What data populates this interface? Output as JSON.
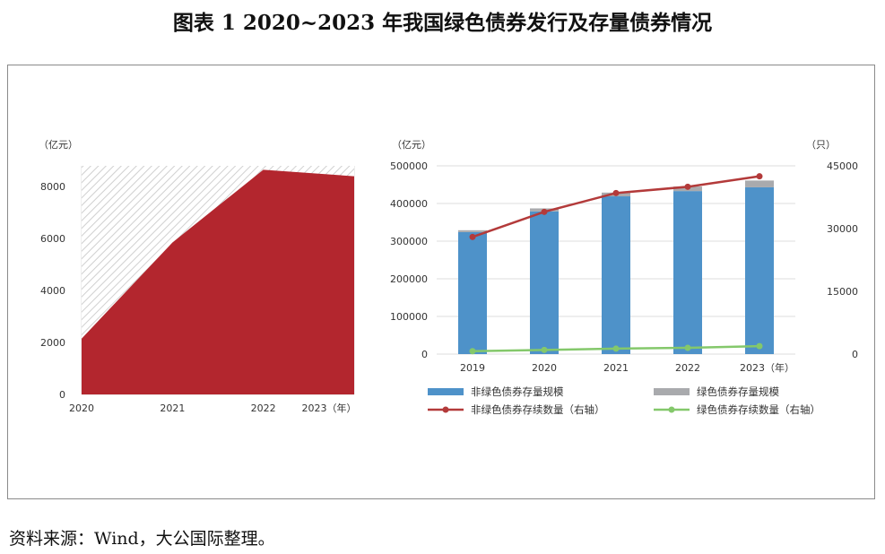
{
  "figure": {
    "title": "图表 1 2020~2023 年我国绿色债券发行及存量债券情况",
    "source": "资料来源：Wind，大公国际整理。"
  },
  "colors": {
    "area_fill": "#b3262e",
    "area_hatch": "#d0d0d0",
    "non_green_bar": "#4e92c9",
    "green_bar": "#a9aaad",
    "non_green_line": "#b33a3a",
    "green_line": "#84c86b",
    "grid": "#dcdcdc"
  },
  "chart_data": [
    {
      "type": "area",
      "title": "",
      "ylabel": "（亿元）",
      "xlabel": "",
      "ylim": [
        0,
        8800
      ],
      "yticks": [
        0,
        2000,
        4000,
        6000,
        8000
      ],
      "x": [
        "2020",
        "2021",
        "2022",
        "2023（年）"
      ],
      "series": [
        {
          "values": [
            2150,
            5850,
            8650,
            8400
          ]
        }
      ],
      "grid": true,
      "legend": "none"
    },
    {
      "type": "bar",
      "title": "",
      "ylabel": "（亿元）",
      "y2label": "（只）",
      "xlabel": "",
      "categories": [
        "2019",
        "2020",
        "2021",
        "2022",
        "2023（年）"
      ],
      "ylim": [
        0,
        500000
      ],
      "yticks": [
        "0",
        "100000",
        "200000",
        "300000",
        "400000",
        "500000"
      ],
      "y2lim": [
        0,
        45000
      ],
      "y2ticks": [
        "0",
        "15000",
        "30000",
        "45000"
      ],
      "series": [
        {
          "name": "非绿色债券存量规模",
          "kind": "bar",
          "axis": "left",
          "values": [
            324000,
            379000,
            419000,
            433000,
            443000
          ]
        },
        {
          "name": "绿色债券存量规模",
          "kind": "bar",
          "axis": "left",
          "stacked": true,
          "values": [
            5000,
            8000,
            10000,
            12000,
            18000
          ]
        },
        {
          "name": "非绿色债券存续数量（右轴）",
          "kind": "line",
          "axis": "right",
          "values": [
            28000,
            34000,
            38500,
            40000,
            42500
          ]
        },
        {
          "name": "绿色债券存续数量（右轴）",
          "kind": "line",
          "axis": "right",
          "values": [
            700,
            1000,
            1300,
            1500,
            1900
          ]
        }
      ],
      "grid": true,
      "legend": "bottom"
    }
  ]
}
